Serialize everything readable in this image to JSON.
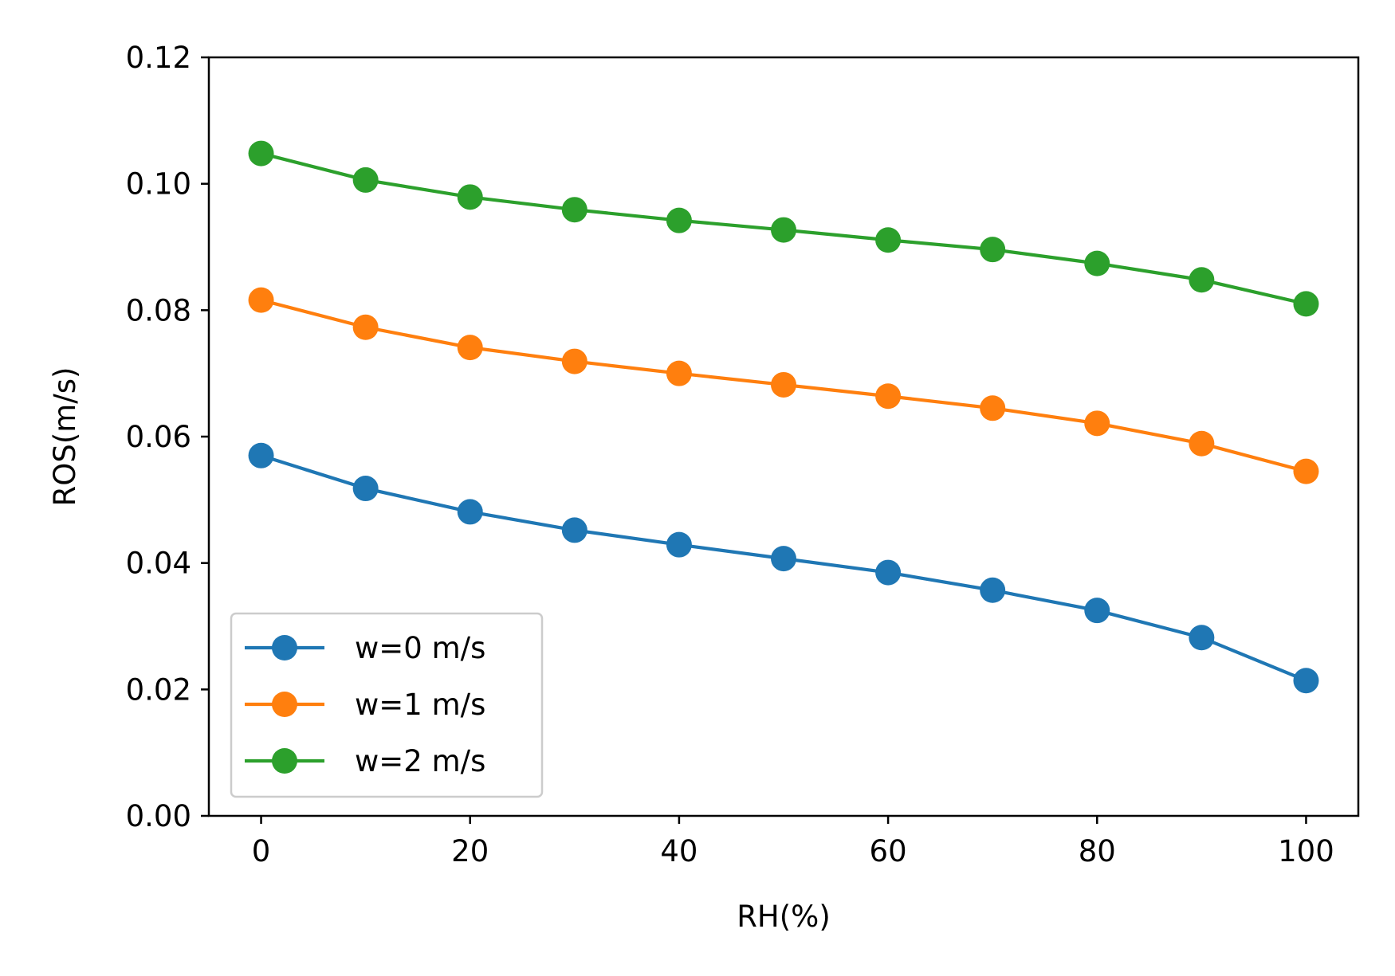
{
  "chart_data": {
    "type": "line",
    "title": "",
    "xlabel": "RH(%)",
    "ylabel": "ROS(m/s)",
    "xlim": [
      -5,
      105
    ],
    "ylim": [
      0,
      0.12
    ],
    "x_ticks": [
      0,
      20,
      40,
      60,
      80,
      100
    ],
    "x_tick_labels": [
      "0",
      "20",
      "40",
      "60",
      "80",
      "100"
    ],
    "y_ticks": [
      0,
      0.02,
      0.04,
      0.06,
      0.08,
      0.1,
      0.12
    ],
    "y_tick_labels": [
      "0.00",
      "0.02",
      "0.04",
      "0.06",
      "0.08",
      "0.10",
      "0.12"
    ],
    "grid": false,
    "legend_position": "lower-left",
    "x": [
      0,
      10,
      20,
      30,
      40,
      50,
      60,
      70,
      80,
      90,
      100
    ],
    "series": [
      {
        "name": "w=0 m/s",
        "color": "#1f77b4",
        "marker": "circle",
        "values": [
          0.057,
          0.0518,
          0.0481,
          0.0452,
          0.0429,
          0.0407,
          0.0385,
          0.0357,
          0.0325,
          0.0282,
          0.0214
        ]
      },
      {
        "name": "w=1 m/s",
        "color": "#ff7f0e",
        "marker": "circle",
        "values": [
          0.0816,
          0.0773,
          0.0741,
          0.0719,
          0.07,
          0.0682,
          0.0664,
          0.0645,
          0.0621,
          0.0589,
          0.0545
        ]
      },
      {
        "name": "w=2 m/s",
        "color": "#2ca02c",
        "marker": "circle",
        "values": [
          0.1048,
          0.1006,
          0.0979,
          0.0959,
          0.0942,
          0.0927,
          0.0911,
          0.0896,
          0.0874,
          0.0848,
          0.081
        ]
      }
    ]
  }
}
